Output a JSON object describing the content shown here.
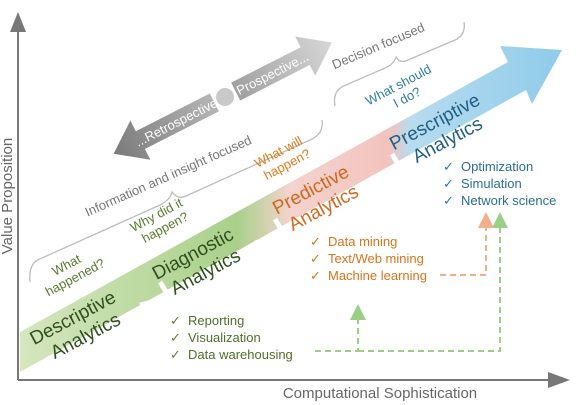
{
  "axes": {
    "y_label": "Value Proposition",
    "x_label": "Computational Sophistication"
  },
  "focus": {
    "retrospective": "...Retrospective",
    "prospective": "Prospective...",
    "info_insight": "Information and insight focused",
    "decision": "Decision focused"
  },
  "stages": [
    {
      "title_line1": "Descriptive",
      "title_line2": "Analytics",
      "question_line1": "What",
      "question_line2": "happened?",
      "question_color": "#5a7a2e",
      "color": "#b7cf94"
    },
    {
      "title_line1": "Diagnostic",
      "title_line2": "Analytics",
      "question_line1": "Why did it",
      "question_line2": "happen?",
      "question_color": "#5a7a2e",
      "color": "#8fbf6a"
    },
    {
      "title_line1": "Predictive",
      "title_line2": "Analytics",
      "question_line1": "What will",
      "question_line2": "happen?",
      "question_color": "#e07b1a",
      "color": "#f3c6c0"
    },
    {
      "title_line1": "Prescriptive",
      "title_line2": "Analytics",
      "question_line1": "What should",
      "question_line2": "I do?",
      "question_color": "#2e7ea6",
      "color": "#a8d6ee"
    }
  ],
  "lists": {
    "descriptive": [
      "Reporting",
      "Visualization",
      "Data warehousing"
    ],
    "predictive": [
      "Data mining",
      "Text/Web mining",
      "Machine learning"
    ],
    "prescriptive": [
      "Optimization",
      "Simulation",
      "Network science"
    ]
  },
  "colors": {
    "axis": "#777777",
    "gray_text": "#666666",
    "green_text": "#4f6f2a",
    "orange_text": "#d9731a",
    "blue_text": "#2a6f94",
    "check_green": "#5f7f2a",
    "check_orange": "#d9731a",
    "check_blue": "#2a7aa6",
    "dash_green": "#9ccf86",
    "dash_orange": "#f2b08a"
  }
}
